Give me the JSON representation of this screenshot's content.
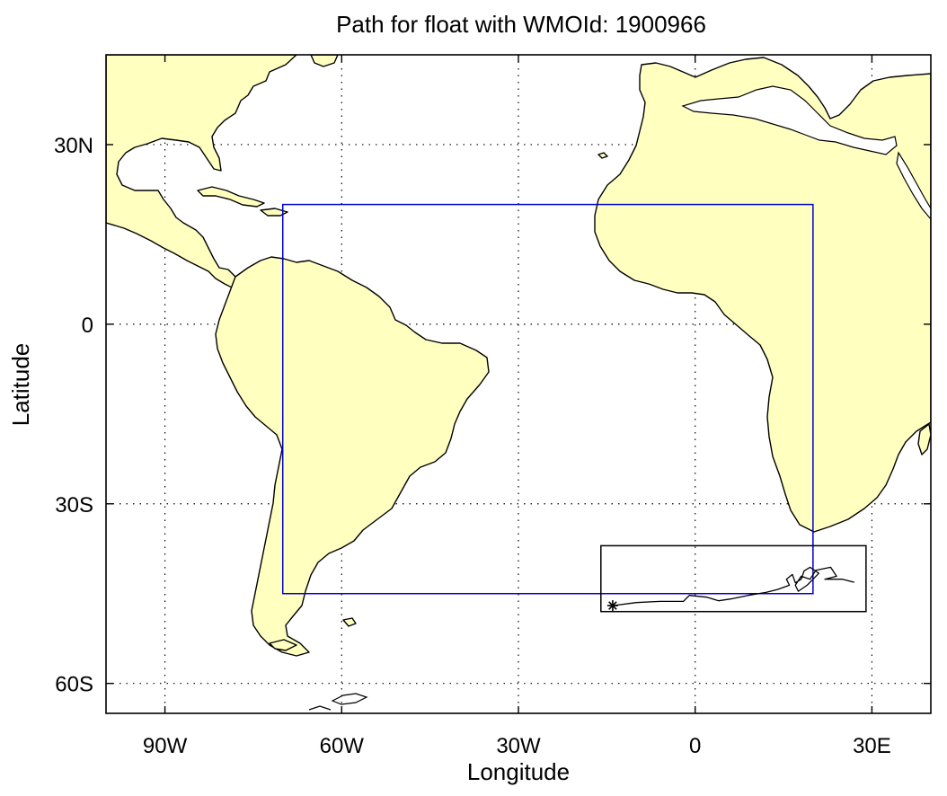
{
  "title": "Path for float with WMOId: 1900966",
  "x_axis": {
    "label": "Longitude",
    "ticks": [
      {
        "value": -90,
        "label": "90W"
      },
      {
        "value": -60,
        "label": "60W"
      },
      {
        "value": -30,
        "label": "30W"
      },
      {
        "value": 0,
        "label": "0"
      },
      {
        "value": 30,
        "label": "30E"
      }
    ],
    "range": [
      -100,
      40
    ]
  },
  "y_axis": {
    "label": "Latitude",
    "ticks": [
      {
        "value": 30,
        "label": "30N"
      },
      {
        "value": 0,
        "label": "0"
      },
      {
        "value": -30,
        "label": "30S"
      },
      {
        "value": -60,
        "label": "60S"
      }
    ],
    "range": [
      -65,
      45
    ]
  },
  "grid": true,
  "colors": {
    "land": "#ffffc0",
    "region_box": "#0000cc",
    "path": "#000000"
  },
  "region_box_blue": {
    "lon": [
      -70,
      20
    ],
    "lat": [
      -45,
      20
    ]
  },
  "float_box_black": {
    "lon": [
      -16,
      29
    ],
    "lat": [
      -48,
      -37
    ]
  },
  "float_path": {
    "start_marker": "asterisk",
    "start": [
      -14,
      -47
    ],
    "points": [
      [
        -14,
        -47
      ],
      [
        -10,
        -46.5
      ],
      [
        -6,
        -46.3
      ],
      [
        -2,
        -46.3
      ],
      [
        -1,
        -45.3
      ],
      [
        2,
        -45.6
      ],
      [
        4,
        -46.2
      ],
      [
        6,
        -45.9
      ],
      [
        9,
        -45.3
      ],
      [
        12,
        -44.8
      ],
      [
        14,
        -44.3
      ],
      [
        16,
        -43.6
      ],
      [
        15.5,
        -42.6
      ],
      [
        16.5,
        -41.8
      ],
      [
        17,
        -43.2
      ],
      [
        18,
        -42.6
      ],
      [
        18.5,
        -41.2
      ],
      [
        19.5,
        -40.6
      ],
      [
        21,
        -41.6
      ],
      [
        20,
        -42.6
      ],
      [
        19,
        -43.6
      ],
      [
        17.5,
        -44.6
      ],
      [
        17,
        -43.6
      ],
      [
        18,
        -42.1
      ],
      [
        19.5,
        -42.6
      ],
      [
        20.5,
        -41.1
      ],
      [
        23,
        -40.6
      ],
      [
        24,
        -42.1
      ],
      [
        22,
        -42.6
      ],
      [
        25,
        -42.6
      ],
      [
        27,
        -43.1
      ]
    ]
  }
}
